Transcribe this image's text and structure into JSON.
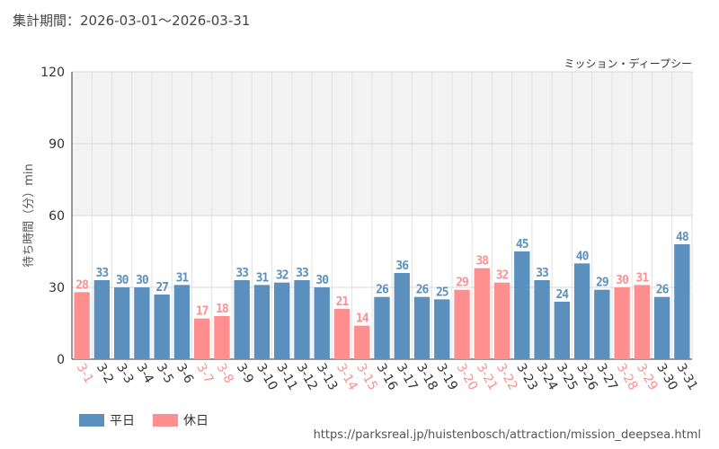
{
  "header": {
    "period_label": "集計期間：2026-03-01～2026-03-31",
    "attraction": "ミッション・ディープシー"
  },
  "legend": {
    "weekday": "平日",
    "holiday": "休日"
  },
  "footer": {
    "source_url": "https://parksreal.jp/huistenbosch/attraction/mission_deepsea.html"
  },
  "colors": {
    "weekday": "#5b8fbd",
    "holiday": "#ff8f8f"
  },
  "chart_data": {
    "type": "bar",
    "title": "",
    "xlabel": "",
    "ylabel": "待ち時間（分）min",
    "ylim": [
      0,
      120
    ],
    "yticks": [
      0,
      30,
      60,
      90,
      120
    ],
    "grid": true,
    "legend_position": "bottom-left",
    "categories": [
      "3-1",
      "3-2",
      "3-3",
      "3-4",
      "3-5",
      "3-6",
      "3-7",
      "3-8",
      "3-9",
      "3-10",
      "3-11",
      "3-12",
      "3-13",
      "3-14",
      "3-15",
      "3-16",
      "3-17",
      "3-18",
      "3-19",
      "3-20",
      "3-21",
      "3-22",
      "3-23",
      "3-24",
      "3-25",
      "3-26",
      "3-27",
      "3-28",
      "3-29",
      "3-30",
      "3-31"
    ],
    "values": [
      28,
      33,
      30,
      30,
      27,
      31,
      17,
      18,
      33,
      31,
      32,
      33,
      30,
      21,
      14,
      26,
      36,
      26,
      25,
      29,
      38,
      32,
      45,
      33,
      24,
      40,
      29,
      30,
      31,
      26,
      48
    ],
    "day_type": [
      "holiday",
      "weekday",
      "weekday",
      "weekday",
      "weekday",
      "weekday",
      "holiday",
      "holiday",
      "weekday",
      "weekday",
      "weekday",
      "weekday",
      "weekday",
      "holiday",
      "holiday",
      "weekday",
      "weekday",
      "weekday",
      "weekday",
      "holiday",
      "holiday",
      "holiday",
      "weekday",
      "weekday",
      "weekday",
      "weekday",
      "weekday",
      "holiday",
      "holiday",
      "weekday",
      "weekday"
    ]
  }
}
